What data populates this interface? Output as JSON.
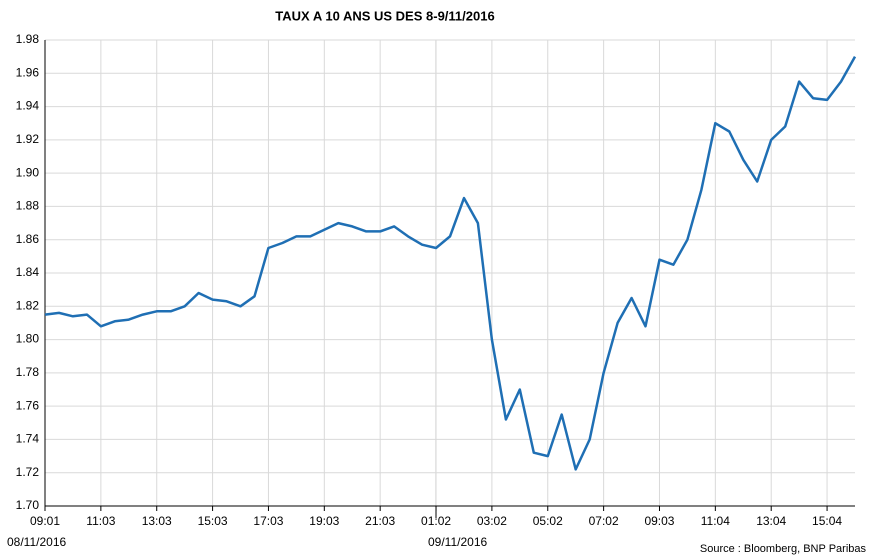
{
  "chart_data": {
    "type": "line",
    "title": "TAUX A 10 ANS US DES 8-9/11/2016",
    "categories": [
      "09:01",
      null,
      null,
      null,
      "11:03",
      null,
      null,
      null,
      "13:03",
      null,
      null,
      null,
      "15:03",
      null,
      null,
      null,
      "17:03",
      null,
      null,
      null,
      "19:03",
      null,
      null,
      null,
      "21:03",
      null,
      null,
      null,
      "01:02",
      null,
      null,
      null,
      "03:02",
      null,
      null,
      null,
      "05:02",
      null,
      null,
      null,
      "07:02",
      null,
      null,
      null,
      "09:03",
      null,
      null,
      null,
      "11:04",
      null,
      null,
      null,
      "13:04",
      null,
      null,
      null,
      "15:04",
      null,
      null
    ],
    "values": [
      1.815,
      1.816,
      1.814,
      1.815,
      1.808,
      1.811,
      1.812,
      1.815,
      1.817,
      1.817,
      1.82,
      1.828,
      1.824,
      1.823,
      1.82,
      1.826,
      1.855,
      1.858,
      1.862,
      1.862,
      1.866,
      1.87,
      1.868,
      1.865,
      1.865,
      1.868,
      1.862,
      1.857,
      1.855,
      1.862,
      1.885,
      1.87,
      1.8,
      1.752,
      1.77,
      1.732,
      1.73,
      1.755,
      1.722,
      1.74,
      1.78,
      1.81,
      1.825,
      1.808,
      1.848,
      1.845,
      1.86,
      1.89,
      1.93,
      1.925,
      1.908,
      1.895,
      1.92,
      1.928,
      1.955,
      1.945,
      1.944,
      1.955,
      1.97
    ],
    "color": "#1f6fb4",
    "ylim": [
      1.7,
      1.98
    ],
    "yticks": [
      {
        "value": 1.7,
        "label": "1.70"
      },
      1.72,
      1.74,
      1.76,
      1.78,
      {
        "value": 1.8,
        "label": "1.80"
      },
      1.82,
      1.84,
      1.86,
      1.88,
      {
        "value": 1.9,
        "label": "1.90"
      },
      1.92,
      1.94,
      1.96,
      1.98
    ],
    "grid": true,
    "annotations": [
      "08/11/2016",
      "09/11/2016"
    ],
    "source": "Source : Bloomberg, BNP Paribas"
  }
}
